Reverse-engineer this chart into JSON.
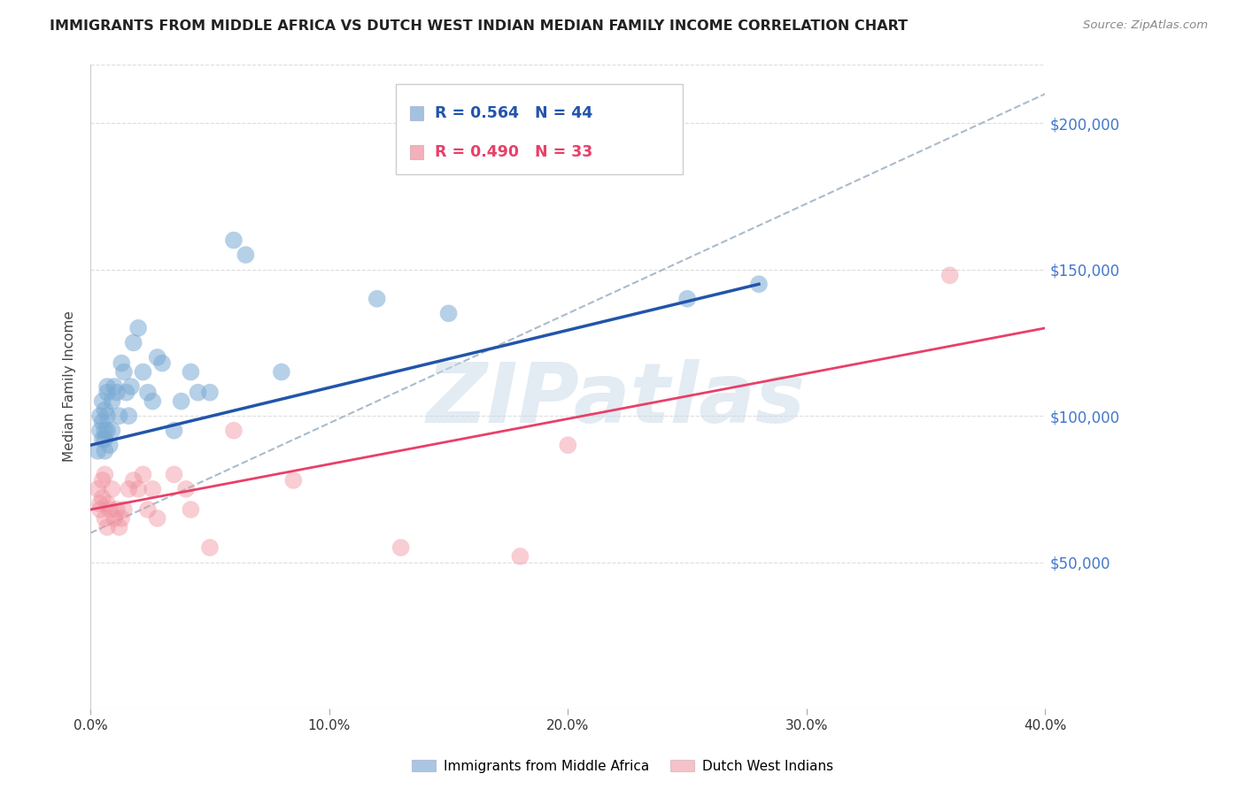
{
  "title": "IMMIGRANTS FROM MIDDLE AFRICA VS DUTCH WEST INDIAN MEDIAN FAMILY INCOME CORRELATION CHART",
  "source": "Source: ZipAtlas.com",
  "ylabel": "Median Family Income",
  "xlim": [
    0.0,
    0.4
  ],
  "ylim": [
    0,
    220000
  ],
  "yticks": [
    0,
    50000,
    100000,
    150000,
    200000
  ],
  "ytick_labels": [
    "",
    "$50,000",
    "$100,000",
    "$150,000",
    "$200,000"
  ],
  "xticks": [
    0.0,
    0.1,
    0.2,
    0.3,
    0.4
  ],
  "xtick_labels": [
    "0.0%",
    "10.0%",
    "20.0%",
    "30.0%",
    "40.0%"
  ],
  "background_color": "#ffffff",
  "blue_color": "#7baad4",
  "pink_color": "#f0919f",
  "blue_line_color": "#2255aa",
  "pink_line_color": "#e84068",
  "dashed_line_color": "#aabbcc",
  "watermark_text": "ZIPatlas",
  "legend_blue_R": "R = 0.564",
  "legend_blue_N": "N = 44",
  "legend_pink_R": "R = 0.490",
  "legend_pink_N": "N = 33",
  "blue_scatter": [
    [
      0.003,
      88000
    ],
    [
      0.004,
      95000
    ],
    [
      0.004,
      100000
    ],
    [
      0.005,
      98000
    ],
    [
      0.005,
      92000
    ],
    [
      0.005,
      105000
    ],
    [
      0.006,
      88000
    ],
    [
      0.006,
      95000
    ],
    [
      0.006,
      102000
    ],
    [
      0.006,
      92000
    ],
    [
      0.007,
      108000
    ],
    [
      0.007,
      110000
    ],
    [
      0.007,
      95000
    ],
    [
      0.007,
      100000
    ],
    [
      0.008,
      90000
    ],
    [
      0.009,
      95000
    ],
    [
      0.009,
      105000
    ],
    [
      0.01,
      110000
    ],
    [
      0.011,
      108000
    ],
    [
      0.012,
      100000
    ],
    [
      0.013,
      118000
    ],
    [
      0.014,
      115000
    ],
    [
      0.015,
      108000
    ],
    [
      0.016,
      100000
    ],
    [
      0.017,
      110000
    ],
    [
      0.018,
      125000
    ],
    [
      0.02,
      130000
    ],
    [
      0.022,
      115000
    ],
    [
      0.024,
      108000
    ],
    [
      0.026,
      105000
    ],
    [
      0.028,
      120000
    ],
    [
      0.03,
      118000
    ],
    [
      0.035,
      95000
    ],
    [
      0.038,
      105000
    ],
    [
      0.042,
      115000
    ],
    [
      0.045,
      108000
    ],
    [
      0.05,
      108000
    ],
    [
      0.06,
      160000
    ],
    [
      0.065,
      155000
    ],
    [
      0.08,
      115000
    ],
    [
      0.12,
      140000
    ],
    [
      0.15,
      135000
    ],
    [
      0.25,
      140000
    ],
    [
      0.28,
      145000
    ]
  ],
  "pink_scatter": [
    [
      0.003,
      75000
    ],
    [
      0.004,
      70000
    ],
    [
      0.004,
      68000
    ],
    [
      0.005,
      72000
    ],
    [
      0.005,
      78000
    ],
    [
      0.006,
      80000
    ],
    [
      0.006,
      65000
    ],
    [
      0.007,
      62000
    ],
    [
      0.007,
      70000
    ],
    [
      0.008,
      68000
    ],
    [
      0.009,
      75000
    ],
    [
      0.01,
      65000
    ],
    [
      0.011,
      68000
    ],
    [
      0.012,
      62000
    ],
    [
      0.013,
      65000
    ],
    [
      0.014,
      68000
    ],
    [
      0.016,
      75000
    ],
    [
      0.018,
      78000
    ],
    [
      0.02,
      75000
    ],
    [
      0.022,
      80000
    ],
    [
      0.024,
      68000
    ],
    [
      0.026,
      75000
    ],
    [
      0.028,
      65000
    ],
    [
      0.035,
      80000
    ],
    [
      0.04,
      75000
    ],
    [
      0.042,
      68000
    ],
    [
      0.05,
      55000
    ],
    [
      0.06,
      95000
    ],
    [
      0.085,
      78000
    ],
    [
      0.13,
      55000
    ],
    [
      0.18,
      52000
    ],
    [
      0.2,
      90000
    ],
    [
      0.36,
      148000
    ]
  ],
  "blue_line_x": [
    0.0,
    0.28
  ],
  "blue_line_y": [
    90000,
    145000
  ],
  "pink_line_x": [
    0.0,
    0.4
  ],
  "pink_line_y": [
    68000,
    130000
  ],
  "dashed_line_x": [
    0.0,
    0.4
  ],
  "dashed_line_y": [
    60000,
    210000
  ],
  "marker_size": 200,
  "title_fontsize": 11.5,
  "label_fontsize": 11,
  "tick_fontsize": 11,
  "right_tick_color": "#4477cc",
  "grid_color": "#dddddd",
  "legend_label_blue": "Immigrants from Middle Africa",
  "legend_label_pink": "Dutch West Indians"
}
